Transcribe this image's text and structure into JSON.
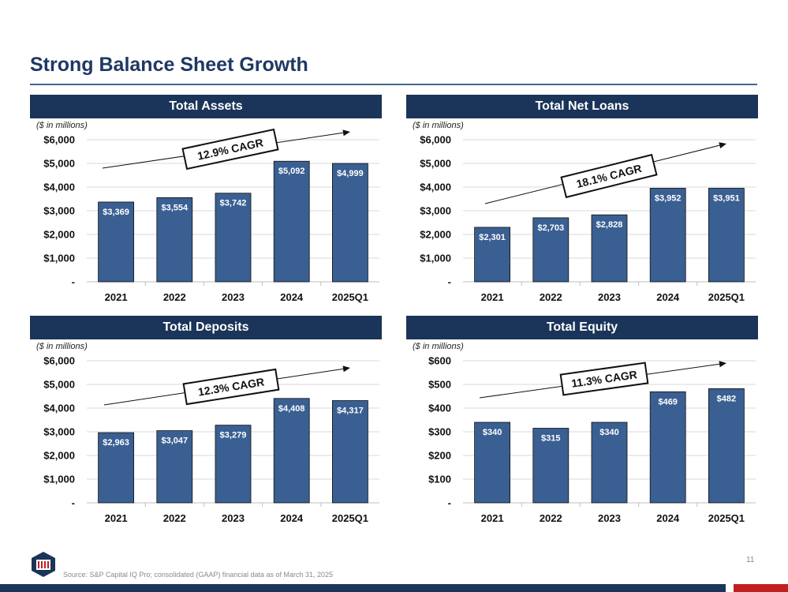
{
  "title": "Strong Balance Sheet Growth",
  "units_label": "($ in millions)",
  "colors": {
    "bar": "#3a5f92",
    "header": "#1b3459",
    "title": "#1f3864",
    "accent_red": "#c0201f"
  },
  "chart_data": [
    {
      "type": "bar",
      "title": "Total Assets",
      "categories": [
        "2021",
        "2022",
        "2023",
        "2024",
        "2025Q1"
      ],
      "values": [
        3369,
        3554,
        3742,
        5092,
        4999
      ],
      "value_labels": [
        "$3,369",
        "$3,554",
        "$3,742",
        "$5,092",
        "$4,999"
      ],
      "ylim": [
        0,
        6000
      ],
      "yticks": [
        "-",
        "$1,000",
        "$2,000",
        "$3,000",
        "$4,000",
        "$5,000",
        "$6,000"
      ],
      "annotation": "12.9% CAGR",
      "grid": true
    },
    {
      "type": "bar",
      "title": "Total Net Loans",
      "categories": [
        "2021",
        "2022",
        "2023",
        "2024",
        "2025Q1"
      ],
      "values": [
        2301,
        2703,
        2828,
        3952,
        3951
      ],
      "value_labels": [
        "$2,301",
        "$2,703",
        "$2,828",
        "$3,952",
        "$3,951"
      ],
      "ylim": [
        0,
        6000
      ],
      "yticks": [
        "-",
        "$1,000",
        "$2,000",
        "$3,000",
        "$4,000",
        "$5,000",
        "$6,000"
      ],
      "annotation": "18.1% CAGR",
      "grid": true
    },
    {
      "type": "bar",
      "title": "Total Deposits",
      "categories": [
        "2021",
        "2022",
        "2023",
        "2024",
        "2025Q1"
      ],
      "values": [
        2963,
        3047,
        3279,
        4408,
        4317
      ],
      "value_labels": [
        "$2,963",
        "$3,047",
        "$3,279",
        "$4,408",
        "$4,317"
      ],
      "ylim": [
        0,
        6000
      ],
      "yticks": [
        "-",
        "$1,000",
        "$2,000",
        "$3,000",
        "$4,000",
        "$5,000",
        "$6,000"
      ],
      "annotation": "12.3% CAGR",
      "grid": true
    },
    {
      "type": "bar",
      "title": "Total Equity",
      "categories": [
        "2021",
        "2022",
        "2023",
        "2024",
        "2025Q1"
      ],
      "values": [
        340,
        315,
        340,
        469,
        482
      ],
      "value_labels": [
        "$340",
        "$315",
        "$340",
        "$469",
        "$482"
      ],
      "ylim": [
        0,
        600
      ],
      "yticks": [
        "-",
        "$100",
        "$200",
        "$300",
        "$400",
        "$500",
        "$600"
      ],
      "annotation": "11.3% CAGR",
      "grid": true
    }
  ],
  "footer": {
    "source": "Source: S&P Capital IQ Pro; consolidated (GAAP) financial data as of March 31, 2025",
    "page_number": "11",
    "logo_icon": "shield-logo-icon"
  }
}
